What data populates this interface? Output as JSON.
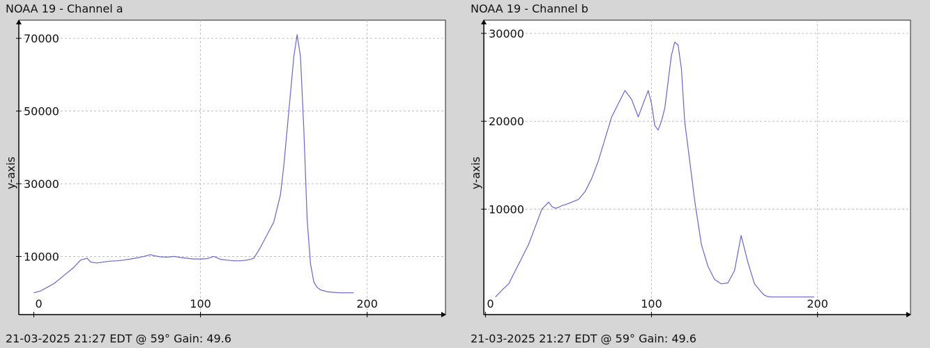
{
  "chart_data": [
    {
      "type": "line",
      "title": "NOAA 19 - Channel a",
      "footer": "21-03-2025 21:27 EDT @ 59° Gain: 49.6",
      "ylabel": "y-axis",
      "xlabel": "",
      "xlim": [
        -9,
        247
      ],
      "ylim": [
        -6000,
        75000
      ],
      "grid": true,
      "x_ticks": [
        0,
        100,
        200
      ],
      "y_ticks": [
        10000,
        30000,
        50000,
        70000
      ],
      "color": "#6666cc",
      "series": [
        {
          "x": [
            0,
            4,
            8,
            12,
            16,
            20,
            24,
            28,
            32,
            34,
            36,
            38,
            42,
            46,
            50,
            54,
            58,
            62,
            66,
            70,
            72,
            76,
            80,
            84,
            88,
            92,
            96,
            100,
            104,
            108,
            112,
            116,
            120,
            124,
            128,
            132,
            136,
            140,
            144,
            148,
            150,
            152,
            154,
            156,
            158,
            160,
            162,
            164,
            166,
            168,
            170,
            172,
            176,
            180,
            184,
            188,
            192
          ],
          "y": [
            0,
            500,
            1500,
            2500,
            4000,
            5500,
            7000,
            9000,
            9500,
            8500,
            8300,
            8200,
            8500,
            8700,
            8800,
            9000,
            9300,
            9600,
            10000,
            10500,
            10200,
            9900,
            9800,
            10000,
            9700,
            9500,
            9300,
            9300,
            9400,
            10000,
            9200,
            9000,
            8800,
            8800,
            9000,
            9500,
            12500,
            16000,
            19500,
            27000,
            35000,
            45000,
            55000,
            65000,
            71000,
            65000,
            45000,
            20000,
            8000,
            3000,
            1500,
            800,
            300,
            100,
            0,
            0,
            0
          ]
        }
      ]
    },
    {
      "type": "line",
      "title": "NOAA 19 - Channel b",
      "footer": "21-03-2025 21:27 EDT @ 59° Gain: 49.6",
      "ylabel": "y-axis",
      "xlabel": "",
      "xlim": [
        -1,
        256
      ],
      "ylim": [
        -2000,
        31500
      ],
      "grid": true,
      "x_ticks": [
        0,
        100,
        200
      ],
      "y_ticks": [
        10000,
        20000,
        30000
      ],
      "color": "#6666cc",
      "series": [
        {
          "x": [
            6,
            10,
            14,
            18,
            22,
            26,
            30,
            34,
            38,
            40,
            42,
            44,
            46,
            48,
            52,
            56,
            60,
            64,
            68,
            72,
            76,
            80,
            84,
            88,
            92,
            96,
            98,
            100,
            102,
            104,
            106,
            108,
            110,
            112,
            114,
            116,
            118,
            120,
            122,
            124,
            126,
            128,
            130,
            134,
            138,
            142,
            146,
            150,
            154,
            158,
            162,
            166,
            168,
            170,
            172,
            174,
            176,
            178,
            180,
            184,
            188,
            192,
            196,
            198
          ],
          "y": [
            0,
            800,
            1500,
            3000,
            4500,
            6000,
            8000,
            10000,
            10800,
            10300,
            10100,
            10200,
            10400,
            10500,
            10800,
            11100,
            12000,
            13500,
            15500,
            18000,
            20500,
            22000,
            23500,
            22500,
            20500,
            22500,
            23500,
            22000,
            19500,
            19000,
            20000,
            21500,
            24500,
            27500,
            29000,
            28700,
            26000,
            20000,
            17000,
            14000,
            11000,
            8500,
            6000,
            3500,
            2000,
            1500,
            1600,
            3000,
            7000,
            4000,
            1500,
            600,
            200,
            50,
            0,
            0,
            0,
            0,
            0,
            0,
            0,
            0,
            0,
            0
          ]
        }
      ]
    }
  ]
}
